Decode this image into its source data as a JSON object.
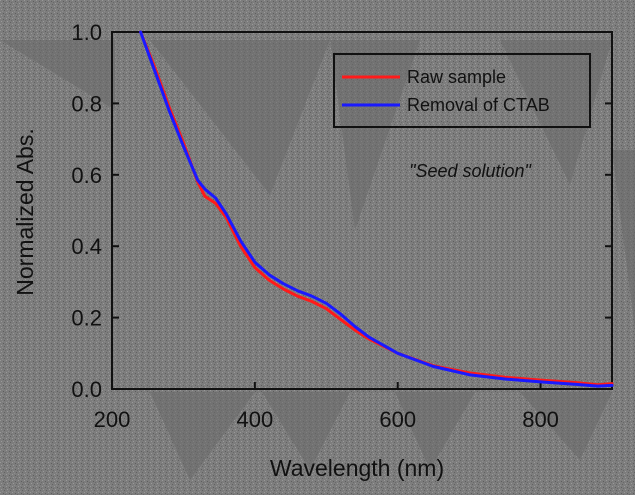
{
  "chart_data": {
    "type": "line",
    "xlabel": "Wavelength (nm)",
    "ylabel": "Normalized Abs.",
    "xlim": [
      200,
      900
    ],
    "ylim": [
      0.0,
      1.0
    ],
    "xticks": [
      200,
      400,
      600,
      800
    ],
    "yticks": [
      0.0,
      0.2,
      0.4,
      0.6,
      0.8,
      1.0
    ],
    "xtick_labels": [
      "200",
      "400",
      "600",
      "800"
    ],
    "ytick_labels": [
      "0.0",
      "0.2",
      "0.4",
      "0.6",
      "0.8",
      "1.0"
    ],
    "annotation": "\"Seed solution\"",
    "legend_position": "top-right",
    "colors": {
      "Raw sample": "#ff1a1a",
      "Removal of CTAB": "#1a1aff"
    },
    "series": [
      {
        "name": "Raw sample",
        "x": [
          240,
          260,
          280,
          300,
          320,
          330,
          345,
          360,
          380,
          400,
          420,
          440,
          460,
          480,
          500,
          520,
          540,
          560,
          600,
          650,
          700,
          750,
          800,
          850,
          880,
          900
        ],
        "y": [
          1.0,
          0.9,
          0.79,
          0.69,
          0.58,
          0.54,
          0.52,
          0.48,
          0.4,
          0.34,
          0.305,
          0.28,
          0.26,
          0.245,
          0.225,
          0.195,
          0.165,
          0.14,
          0.1,
          0.065,
          0.045,
          0.033,
          0.025,
          0.018,
          0.012,
          0.015
        ]
      },
      {
        "name": "Removal of CTAB",
        "x": [
          240,
          260,
          280,
          300,
          320,
          330,
          345,
          360,
          380,
          400,
          420,
          440,
          460,
          480,
          500,
          520,
          540,
          560,
          600,
          650,
          700,
          750,
          800,
          850,
          880,
          900
        ],
        "y": [
          1.0,
          0.89,
          0.78,
          0.68,
          0.585,
          0.56,
          0.535,
          0.49,
          0.415,
          0.355,
          0.32,
          0.295,
          0.275,
          0.26,
          0.24,
          0.21,
          0.175,
          0.145,
          0.1,
          0.063,
          0.04,
          0.028,
          0.02,
          0.013,
          0.008,
          0.01
        ]
      }
    ]
  }
}
